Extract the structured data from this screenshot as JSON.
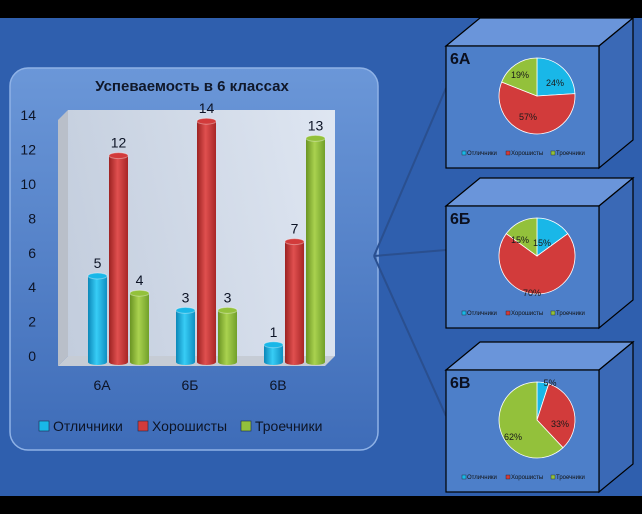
{
  "colors": {
    "background": "#2f5fae",
    "panel": "#4f7cc6",
    "otlichniki": "#19b7e8",
    "khoroshisty": "#d23b3b",
    "troechniki": "#93c13b"
  },
  "chart_data": [
    {
      "type": "bar",
      "title": "Успеваемость в 6 классах",
      "categories": [
        "6А",
        "6Б",
        "6В"
      ],
      "series": [
        {
          "name": "Отличники",
          "values": [
            5,
            3,
            1
          ],
          "labels": [
            "5",
            "3",
            "1"
          ]
        },
        {
          "name": "Хорошисты",
          "values": [
            12,
            14,
            7
          ],
          "labels": [
            "12",
            "14",
            "7"
          ]
        },
        {
          "name": "Троечники",
          "values": [
            4,
            3,
            13
          ],
          "labels": [
            "4",
            "3",
            "13"
          ]
        }
      ],
      "yticks": [
        "0",
        "2",
        "4",
        "6",
        "8",
        "10",
        "12",
        "14"
      ],
      "ylim": [
        0,
        14
      ],
      "grid": false,
      "legend": "bottom"
    },
    {
      "type": "pie",
      "title": "6А",
      "categories": [
        "Отличники",
        "Хорошисты",
        "Троечники"
      ],
      "values": [
        24,
        57,
        19
      ],
      "labels": [
        "24%",
        "57%",
        "19%"
      ],
      "legend": "bottom"
    },
    {
      "type": "pie",
      "title": "6Б",
      "categories": [
        "Отличники",
        "Хорошисты",
        "Троечники"
      ],
      "values": [
        15,
        70,
        15
      ],
      "labels": [
        "15%",
        "70%",
        "15%"
      ],
      "legend": "bottom"
    },
    {
      "type": "pie",
      "title": "6В",
      "categories": [
        "Отличники",
        "Хорошисты",
        "Троечники"
      ],
      "values": [
        5,
        33,
        62
      ],
      "labels": [
        "5%",
        "33%",
        "62%"
      ],
      "legend": "bottom"
    }
  ]
}
